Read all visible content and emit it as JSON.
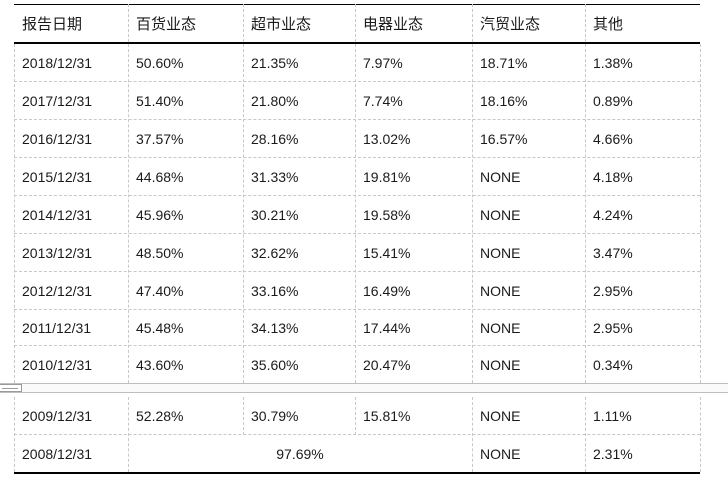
{
  "table": {
    "headers": [
      "报告日期",
      "百货业态",
      "超市业态",
      "电器业态",
      "汽贸业态",
      "其他"
    ],
    "rows": [
      [
        "2018/12/31",
        "50.60%",
        "21.35%",
        "7.97%",
        "18.71%",
        "1.38%"
      ],
      [
        "2017/12/31",
        "51.40%",
        "21.80%",
        "7.74%",
        "18.16%",
        "0.89%"
      ],
      [
        "2016/12/31",
        "37.57%",
        "28.16%",
        "13.02%",
        "16.57%",
        "4.66%"
      ],
      [
        "2015/12/31",
        "44.68%",
        "31.33%",
        "19.81%",
        "NONE",
        "4.18%"
      ],
      [
        "2014/12/31",
        "45.96%",
        "30.21%",
        "19.58%",
        "NONE",
        "4.24%"
      ],
      [
        "2013/12/31",
        "48.50%",
        "32.62%",
        "15.41%",
        "NONE",
        "3.47%"
      ],
      [
        "2012/12/31",
        "47.40%",
        "33.16%",
        "16.49%",
        "NONE",
        "2.95%"
      ],
      [
        "2011/12/31",
        "45.48%",
        "34.13%",
        "17.44%",
        "NONE",
        "2.95%"
      ],
      [
        "2010/12/31",
        "43.60%",
        "35.60%",
        "20.47%",
        "NONE",
        "0.34%"
      ],
      [
        "2009/12/31",
        "52.28%",
        "30.79%",
        "15.81%",
        "NONE",
        "1.11%"
      ]
    ],
    "merged_row": {
      "date": "2008/12/31",
      "combined": "97.69%",
      "auto": "NONE",
      "other": "2.31%"
    }
  }
}
